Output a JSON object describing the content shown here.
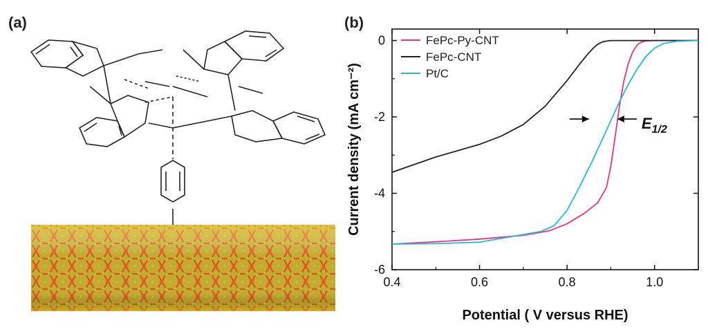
{
  "panel_a": {
    "label": "(a)"
  },
  "panel_b": {
    "label": "(b)"
  },
  "chart_data": {
    "type": "line",
    "title": "",
    "xlabel": "Potential ( V versus RHE)",
    "ylabel": "Current density (mA cm⁻²)",
    "xlim": [
      0.4,
      1.1
    ],
    "ylim": [
      -6,
      0.3
    ],
    "xticks": [
      0.4,
      0.6,
      0.8,
      1.0
    ],
    "xtick_labels": [
      "0.4",
      "0.6",
      "0.8",
      "1.0"
    ],
    "yticks": [
      0,
      -2,
      -4,
      -6
    ],
    "ytick_labels": [
      "0",
      "-2",
      "-4",
      "-6"
    ],
    "legend_position": "top-left",
    "grid": false,
    "annotation": {
      "text": "E",
      "subscript": "1/2",
      "at": [
        0.885,
        -2.2
      ]
    },
    "series": [
      {
        "name": "FePc-Py-CNT",
        "color": "#e8337f",
        "x": [
          0.4,
          0.5,
          0.6,
          0.7,
          0.76,
          0.8,
          0.84,
          0.87,
          0.89,
          0.9,
          0.91,
          0.92,
          0.93,
          0.94,
          0.95,
          0.96,
          0.97,
          0.98,
          1.0,
          1.1
        ],
        "y": [
          -5.33,
          -5.27,
          -5.2,
          -5.1,
          -4.98,
          -4.8,
          -4.52,
          -4.25,
          -3.85,
          -3.3,
          -2.5,
          -1.7,
          -1.05,
          -0.6,
          -0.3,
          -0.12,
          -0.04,
          -0.01,
          0,
          0
        ]
      },
      {
        "name": "FePc-CNT",
        "color": "#222222",
        "x": [
          0.4,
          0.5,
          0.6,
          0.65,
          0.7,
          0.75,
          0.8,
          0.83,
          0.85,
          0.86,
          0.87,
          0.88,
          0.89,
          0.9,
          0.92,
          0.95,
          1.0,
          1.1
        ],
        "y": [
          -3.45,
          -3.05,
          -2.72,
          -2.5,
          -2.2,
          -1.72,
          -1.05,
          -0.6,
          -0.32,
          -0.2,
          -0.1,
          -0.04,
          -0.015,
          0,
          0,
          0,
          0,
          0
        ]
      },
      {
        "name": "Pt/C",
        "color": "#29b6d8",
        "x": [
          0.4,
          0.5,
          0.6,
          0.68,
          0.74,
          0.77,
          0.8,
          0.83,
          0.86,
          0.88,
          0.9,
          0.92,
          0.94,
          0.96,
          0.98,
          1.0,
          1.02,
          1.05,
          1.1
        ],
        "y": [
          -5.33,
          -5.32,
          -5.28,
          -5.12,
          -5.0,
          -4.85,
          -4.45,
          -3.8,
          -3.1,
          -2.6,
          -2.1,
          -1.6,
          -1.15,
          -0.75,
          -0.42,
          -0.2,
          -0.08,
          -0.02,
          0
        ]
      }
    ]
  }
}
